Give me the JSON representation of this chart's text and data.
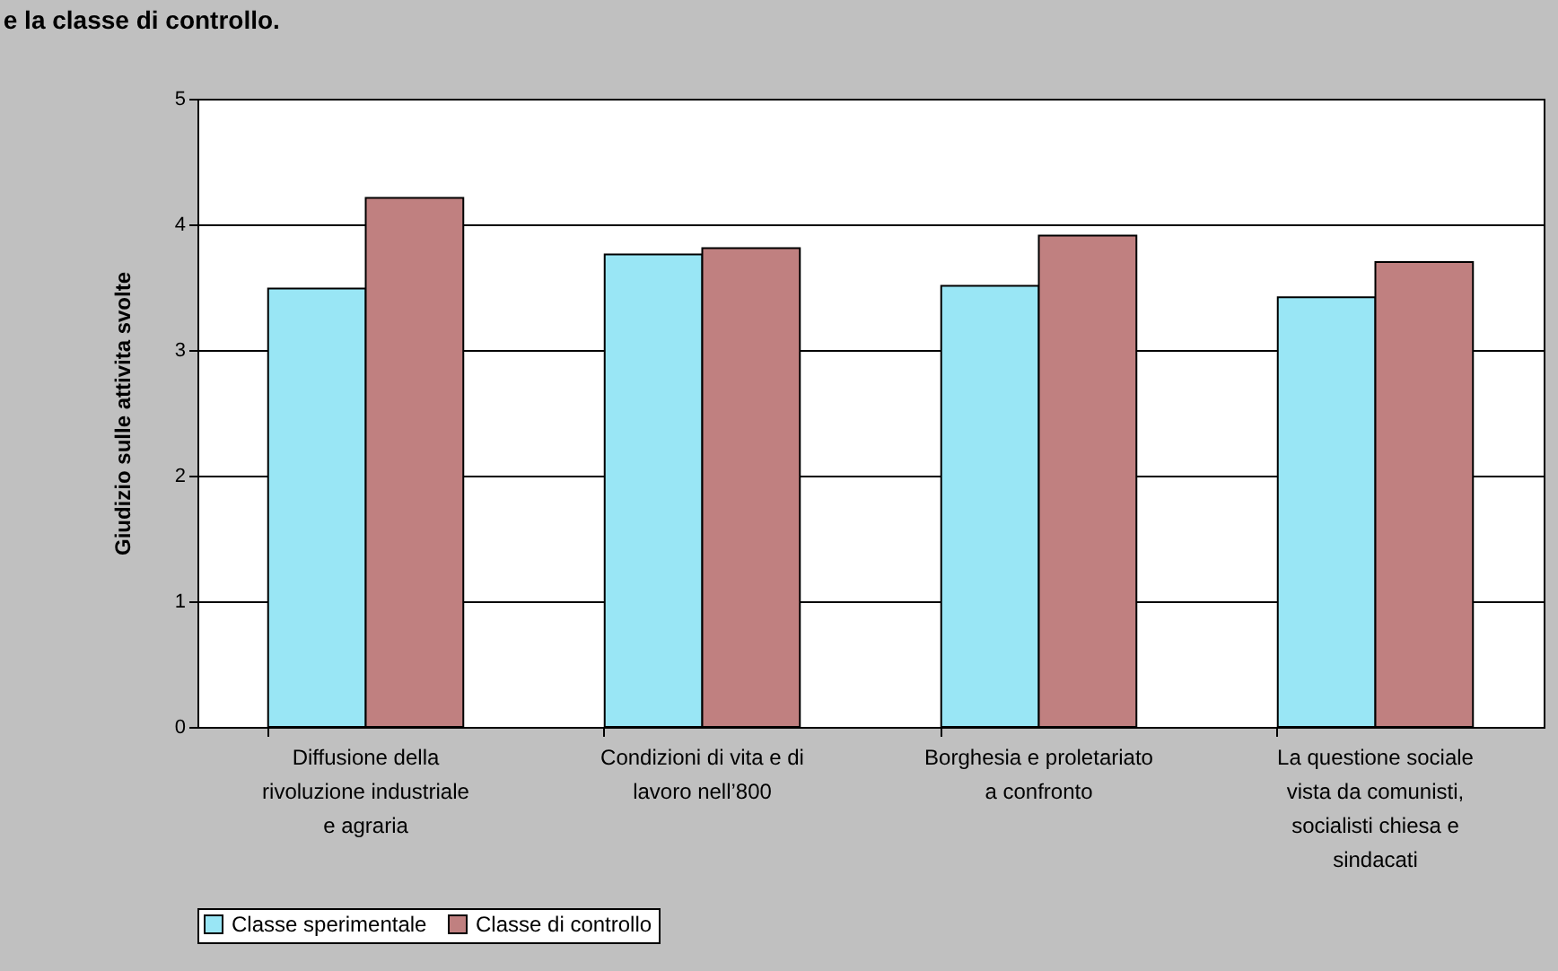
{
  "chart_data": {
    "type": "bar",
    "title": "e la classe di controllo.",
    "ylabel": "Giudizio sulle attivita svolte",
    "categories": [
      "Diffusione della rivoluzione industriale e agraria",
      "Condizioni di vita e di lavoro nell’800",
      "Borghesia e proletariato a confronto",
      "La questione sociale vista da comunisti, socialisti chiesa e sindacati"
    ],
    "series": [
      {
        "name": "Classe sperimentale",
        "color": "#99e6f5",
        "values": [
          3.49,
          3.76,
          3.51,
          3.42
        ]
      },
      {
        "name": "Classe di controllo",
        "color": "#c08080",
        "values": [
          4.21,
          3.81,
          3.91,
          3.7
        ]
      }
    ],
    "ylim": [
      0,
      5
    ],
    "yticks": [
      0,
      1,
      2,
      3,
      4,
      5
    ],
    "grid": "y",
    "legend": "bottom"
  }
}
